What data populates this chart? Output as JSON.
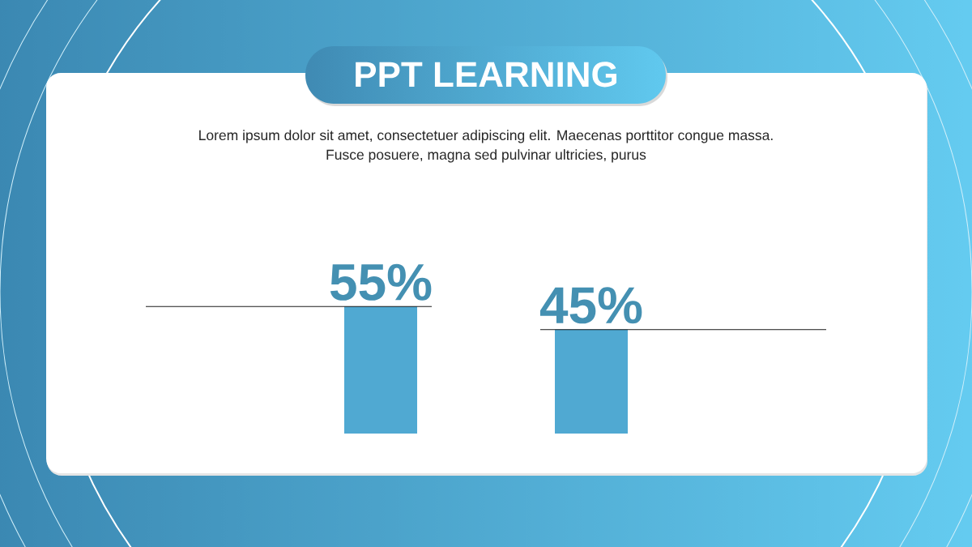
{
  "chart_data": {
    "type": "bar",
    "title": "PPT LEARNING",
    "subtitle": "Lorem ipsum dolor sit amet, consectetuer adipiscing elit. Maecenas porttitor congue massa. Fusce posuere, magna sed pulvinar ultricies, purus",
    "categories": [
      null,
      null
    ],
    "values": [
      55,
      45
    ],
    "color": "#50a9d2",
    "value_labels": [
      "55%",
      "45%"
    ],
    "tick_labels": false
  }
}
